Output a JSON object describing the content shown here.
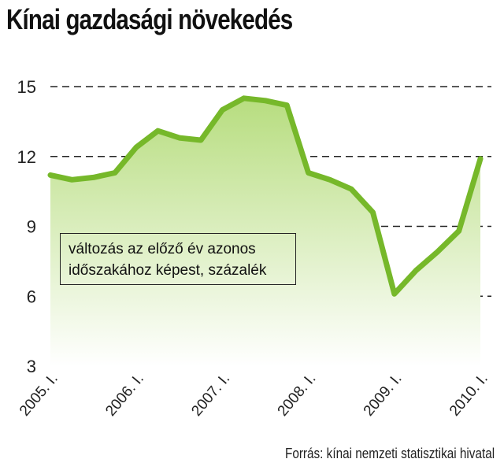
{
  "title": "Kínai gazdasági növekedés",
  "source": "Forrás: kínai nemzeti statisztikai hivatal",
  "note": {
    "line1": "változás az előző év azonos",
    "line2": "időszakához képest, százalék"
  },
  "chart_data": {
    "type": "area",
    "title": "Kínai gazdasági növekedés",
    "ylim": [
      3,
      15
    ],
    "yticks": [
      3,
      6,
      9,
      12,
      15
    ],
    "xticks": [
      "2005. I.",
      "2006. I.",
      "2007. I.",
      "2008. I.",
      "2009. I.",
      "2010. I."
    ],
    "grid": true,
    "x": [
      "2005 Q1",
      "2005 Q2",
      "2005 Q3",
      "2005 Q4",
      "2006 Q1",
      "2006 Q2",
      "2006 Q3",
      "2006 Q4",
      "2007 Q1",
      "2007 Q2",
      "2007 Q3",
      "2007 Q4",
      "2008 Q1",
      "2008 Q2",
      "2008 Q3",
      "2008 Q4",
      "2009 Q1",
      "2009 Q2",
      "2009 Q3",
      "2009 Q4",
      "2010 Q1"
    ],
    "values": [
      11.2,
      11.0,
      11.1,
      11.3,
      12.4,
      13.1,
      12.8,
      12.7,
      14.0,
      14.5,
      14.4,
      14.2,
      11.3,
      11.0,
      10.6,
      9.6,
      6.1,
      7.1,
      7.9,
      8.8,
      11.9
    ],
    "colors": {
      "line": "#76b82a",
      "fill_top": "#b7dd7f",
      "fill_bottom": "#ffffff",
      "grid": "#222222"
    }
  }
}
